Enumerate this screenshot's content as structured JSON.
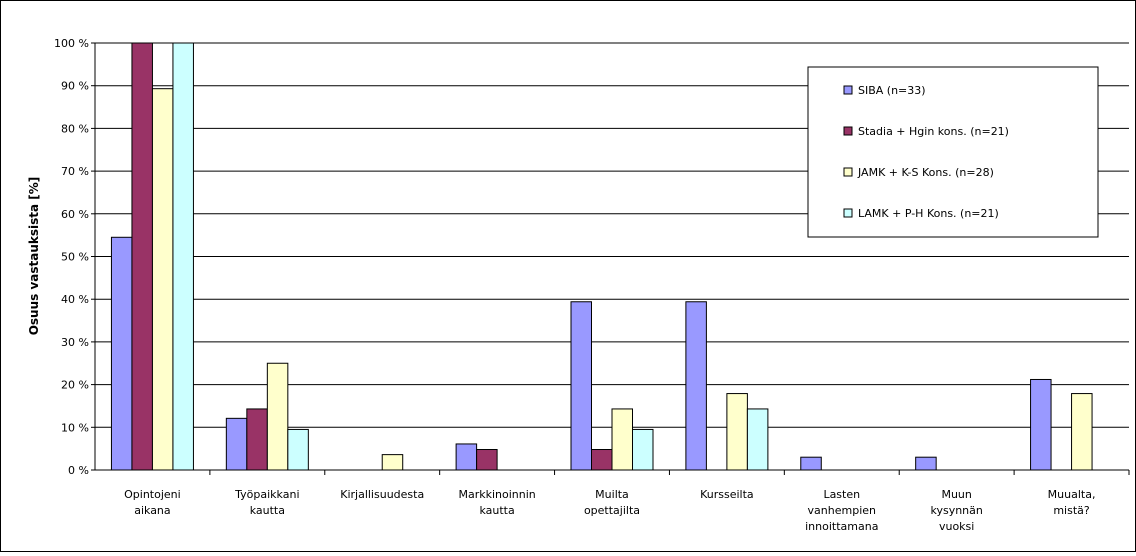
{
  "chart_data": {
    "type": "bar",
    "ylabel": "Osuus vastauksista [%]",
    "ylim": [
      0,
      100
    ],
    "yticks": [
      "0 %",
      "10 %",
      "20 %",
      "30 %",
      "40 %",
      "50 %",
      "60 %",
      "70 %",
      "80 %",
      "90 %",
      "100 %"
    ],
    "grid": true,
    "legend_placement": "top-right",
    "categories": [
      [
        "Opintojeni",
        "aikana"
      ],
      [
        "Työpaikkani",
        "kautta"
      ],
      [
        "Kirjallisuudesta"
      ],
      [
        "Markkinoinnin",
        "kautta"
      ],
      [
        "Muilta",
        "opettajilta"
      ],
      [
        "Kursseilta"
      ],
      [
        "Lasten",
        "vanhempien",
        "innoittamana"
      ],
      [
        "Muun",
        "kysynnän",
        "vuoksi"
      ],
      [
        "Muualta,",
        "mistä?"
      ]
    ],
    "series": [
      {
        "name": "SIBA (n=33)",
        "color": "#9999FF",
        "values": [
          54.5,
          12.1,
          0,
          6.1,
          39.4,
          39.4,
          3.0,
          3.0,
          21.2
        ]
      },
      {
        "name": "Stadia + Hgin kons. (n=21)",
        "color": "#993366",
        "values": [
          100,
          14.3,
          0,
          4.8,
          4.8,
          0,
          0,
          0,
          0
        ]
      },
      {
        "name": "JAMK + K-S Kons. (n=28)",
        "color": "#FFFFCC",
        "values": [
          89.3,
          25.0,
          3.6,
          0,
          14.3,
          17.9,
          0,
          0,
          17.9
        ]
      },
      {
        "name": "LAMK + P-H Kons. (n=21)",
        "color": "#CCFFFF",
        "values": [
          100,
          9.5,
          0,
          0,
          9.5,
          14.3,
          0,
          0,
          0
        ]
      }
    ]
  }
}
